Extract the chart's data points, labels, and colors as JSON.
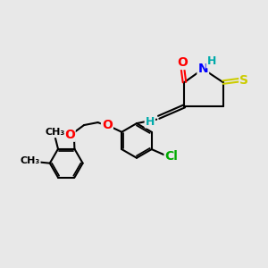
{
  "background_color": "#e8e8e8",
  "bond_color": "#000000",
  "bond_width": 1.5,
  "atom_colors": {
    "O": "#ff0000",
    "N": "#0000ff",
    "S": "#cccc00",
    "Cl": "#00aa00",
    "H": "#00aaaa",
    "C": "#000000"
  },
  "font_size": 9,
  "figsize": [
    3.0,
    3.0
  ],
  "dpi": 100
}
